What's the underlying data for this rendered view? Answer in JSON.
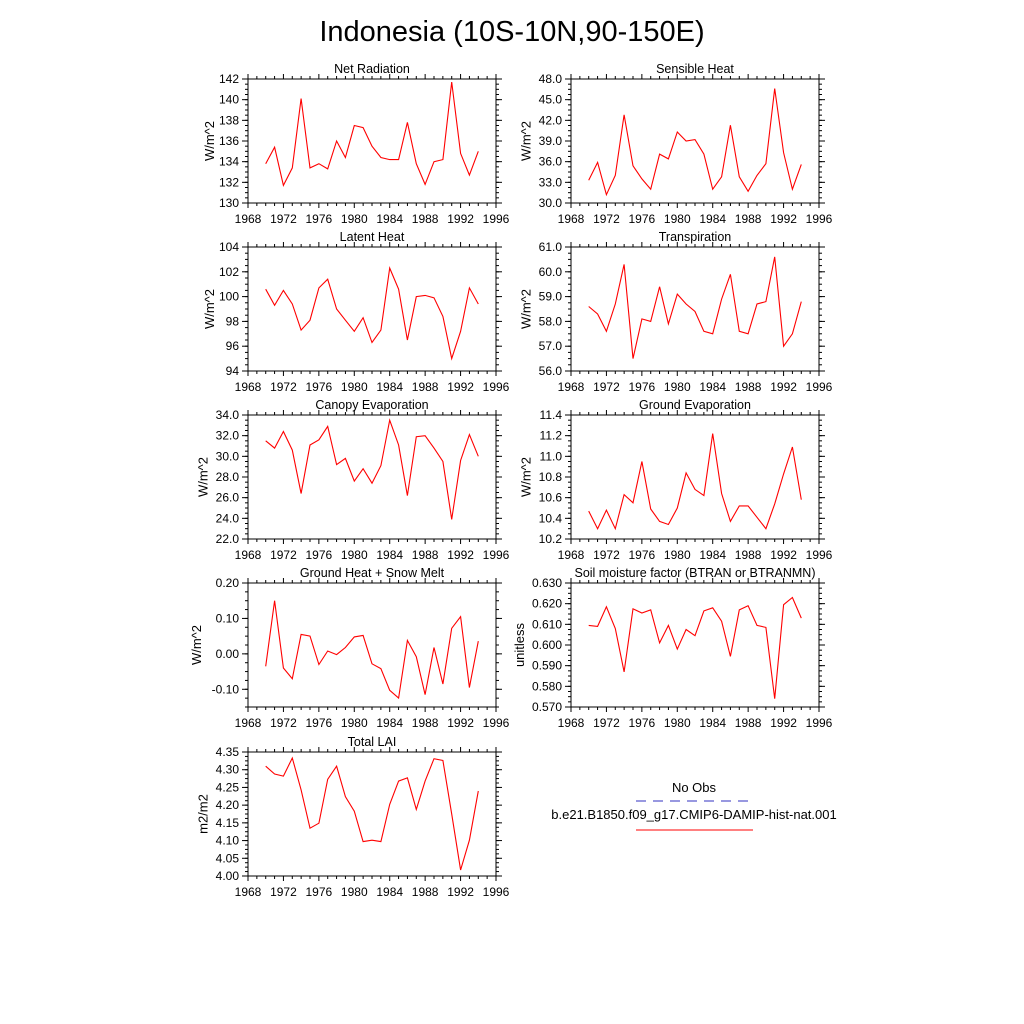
{
  "title": "Indonesia (10S-10N,90-150E)",
  "colors": {
    "model_line": "#ff0000",
    "obs_line": "#3030c0",
    "frame": "#000000",
    "background": "#ffffff"
  },
  "legend": {
    "obs_label": "No Obs",
    "obs_line_style": "dashed",
    "model_label": "b.e21.B1850.f09_g17.CMIP6-DAMIP-hist-nat.001",
    "model_line_style": "solid"
  },
  "chart_data": [
    {
      "type": "line",
      "title": "Net Radiation",
      "ylabel": "W/m^2",
      "xlim": [
        1968,
        1996
      ],
      "ylim": [
        130,
        142
      ],
      "xticks": [
        "1968",
        "1972",
        "1976",
        "1980",
        "1984",
        "1988",
        "1992",
        "1996"
      ],
      "yticks": [
        "130",
        "132",
        "134",
        "136",
        "138",
        "140",
        "142"
      ],
      "series": [
        {
          "x": [
            1970,
            1971,
            1972,
            1973,
            1974,
            1975,
            1976,
            1977,
            1978,
            1979,
            1980,
            1981,
            1982,
            1983,
            1984,
            1985,
            1986,
            1987,
            1988,
            1989,
            1990,
            1991,
            1992,
            1993,
            1994
          ],
          "y": [
            133.8,
            135.4,
            131.7,
            133.4,
            140.1,
            133.4,
            133.8,
            133.3,
            136.0,
            134.4,
            137.5,
            137.3,
            135.5,
            134.4,
            134.2,
            134.2,
            137.8,
            133.8,
            131.8,
            134.0,
            134.2,
            141.7,
            134.8,
            132.7,
            135.0
          ]
        }
      ]
    },
    {
      "type": "line",
      "title": "Sensible Heat",
      "ylabel": "W/m^2",
      "xlim": [
        1968,
        1996
      ],
      "ylim": [
        30,
        48
      ],
      "xticks": [
        "1968",
        "1972",
        "1976",
        "1980",
        "1984",
        "1988",
        "1992",
        "1996"
      ],
      "yticks": [
        "30.0",
        "33.0",
        "36.0",
        "39.0",
        "42.0",
        "45.0",
        "48.0"
      ],
      "series": [
        {
          "x": [
            1970,
            1971,
            1972,
            1973,
            1974,
            1975,
            1976,
            1977,
            1978,
            1979,
            1980,
            1981,
            1982,
            1983,
            1984,
            1985,
            1986,
            1987,
            1988,
            1989,
            1990,
            1991,
            1992,
            1993,
            1994
          ],
          "y": [
            33.3,
            35.9,
            31.2,
            34.0,
            42.8,
            35.4,
            33.5,
            32.0,
            37.1,
            36.4,
            40.3,
            39.0,
            39.2,
            37.1,
            32.0,
            33.8,
            41.3,
            33.8,
            31.7,
            34.0,
            35.7,
            46.6,
            37.3,
            32.0,
            35.6
          ]
        }
      ]
    },
    {
      "type": "line",
      "title": "Latent Heat",
      "ylabel": "W/m^2",
      "xlim": [
        1968,
        1996
      ],
      "ylim": [
        94,
        104
      ],
      "xticks": [
        "1968",
        "1972",
        "1976",
        "1980",
        "1984",
        "1988",
        "1992",
        "1996"
      ],
      "yticks": [
        "94",
        "96",
        "98",
        "100",
        "102",
        "104"
      ],
      "series": [
        {
          "x": [
            1970,
            1971,
            1972,
            1973,
            1974,
            1975,
            1976,
            1977,
            1978,
            1979,
            1980,
            1981,
            1982,
            1983,
            1984,
            1985,
            1986,
            1987,
            1988,
            1989,
            1990,
            1991,
            1992,
            1993,
            1994
          ],
          "y": [
            100.6,
            99.3,
            100.5,
            99.4,
            97.3,
            98.1,
            100.7,
            101.4,
            99.0,
            98.1,
            97.2,
            98.3,
            96.3,
            97.3,
            102.3,
            100.6,
            96.5,
            100.0,
            100.1,
            99.9,
            98.4,
            95.0,
            97.2,
            100.7,
            99.4
          ]
        }
      ]
    },
    {
      "type": "line",
      "title": "Transpiration",
      "ylabel": "W/m^2",
      "xlim": [
        1968,
        1996
      ],
      "ylim": [
        56,
        61
      ],
      "xticks": [
        "1968",
        "1972",
        "1976",
        "1980",
        "1984",
        "1988",
        "1992",
        "1996"
      ],
      "yticks": [
        "56.0",
        "57.0",
        "58.0",
        "59.0",
        "60.0",
        "61.0"
      ],
      "series": [
        {
          "x": [
            1970,
            1971,
            1972,
            1973,
            1974,
            1975,
            1976,
            1977,
            1978,
            1979,
            1980,
            1981,
            1982,
            1983,
            1984,
            1985,
            1986,
            1987,
            1988,
            1989,
            1990,
            1991,
            1992,
            1993,
            1994
          ],
          "y": [
            58.6,
            58.3,
            57.6,
            58.7,
            60.3,
            56.5,
            58.1,
            58.0,
            59.4,
            57.9,
            59.1,
            58.7,
            58.4,
            57.6,
            57.5,
            58.9,
            59.9,
            57.6,
            57.5,
            58.7,
            58.8,
            60.6,
            57.0,
            57.5,
            58.8
          ]
        }
      ]
    },
    {
      "type": "line",
      "title": "Canopy Evaporation",
      "ylabel": "W/m^2",
      "xlim": [
        1968,
        1996
      ],
      "ylim": [
        22,
        34
      ],
      "xticks": [
        "1968",
        "1972",
        "1976",
        "1980",
        "1984",
        "1988",
        "1992",
        "1996"
      ],
      "yticks": [
        "22.0",
        "24.0",
        "26.0",
        "28.0",
        "30.0",
        "32.0",
        "34.0"
      ],
      "series": [
        {
          "x": [
            1970,
            1971,
            1972,
            1973,
            1974,
            1975,
            1976,
            1977,
            1978,
            1979,
            1980,
            1981,
            1982,
            1983,
            1984,
            1985,
            1986,
            1987,
            1988,
            1989,
            1990,
            1991,
            1992,
            1993,
            1994
          ],
          "y": [
            31.5,
            30.8,
            32.4,
            30.6,
            26.4,
            31.1,
            31.6,
            32.9,
            29.2,
            29.8,
            27.6,
            28.8,
            27.4,
            29.1,
            33.5,
            31.1,
            26.2,
            31.9,
            32.0,
            30.8,
            29.5,
            23.9,
            29.6,
            32.1,
            30.0
          ]
        }
      ]
    },
    {
      "type": "line",
      "title": "Ground Evaporation",
      "ylabel": "W/m^2",
      "xlim": [
        1968,
        1996
      ],
      "ylim": [
        10.2,
        11.4
      ],
      "xticks": [
        "1968",
        "1972",
        "1976",
        "1980",
        "1984",
        "1988",
        "1992",
        "1996"
      ],
      "yticks": [
        "10.2",
        "10.4",
        "10.6",
        "10.8",
        "11.0",
        "11.2",
        "11.4"
      ],
      "series": [
        {
          "x": [
            1970,
            1971,
            1972,
            1973,
            1974,
            1975,
            1976,
            1977,
            1978,
            1979,
            1980,
            1981,
            1982,
            1983,
            1984,
            1985,
            1986,
            1987,
            1988,
            1989,
            1990,
            1991,
            1992,
            1993,
            1994
          ],
          "y": [
            10.47,
            10.3,
            10.48,
            10.3,
            10.63,
            10.55,
            10.95,
            10.49,
            10.37,
            10.34,
            10.5,
            10.84,
            10.68,
            10.62,
            11.22,
            10.64,
            10.37,
            10.52,
            10.52,
            10.41,
            10.3,
            10.54,
            10.83,
            11.09,
            10.58
          ]
        }
      ]
    },
    {
      "type": "line",
      "title": "Ground Heat + Snow Melt",
      "ylabel": "W/m^2",
      "xlim": [
        1968,
        1996
      ],
      "ylim": [
        -0.15,
        0.2
      ],
      "xticks": [
        "1968",
        "1972",
        "1976",
        "1980",
        "1984",
        "1988",
        "1992",
        "1996"
      ],
      "yticks": [
        "-0.10",
        "0.00",
        "0.10",
        "0.20"
      ],
      "ytick_values": [
        -0.1,
        0.0,
        0.1,
        0.2
      ],
      "series": [
        {
          "x": [
            1970,
            1971,
            1972,
            1973,
            1974,
            1975,
            1976,
            1977,
            1978,
            1979,
            1980,
            1981,
            1982,
            1983,
            1984,
            1985,
            1986,
            1987,
            1988,
            1989,
            1990,
            1991,
            1992,
            1993,
            1994
          ],
          "y": [
            -0.035,
            0.15,
            -0.04,
            -0.07,
            0.055,
            0.05,
            -0.03,
            0.008,
            -0.002,
            0.018,
            0.048,
            0.052,
            -0.028,
            -0.042,
            -0.103,
            -0.125,
            0.038,
            -0.008,
            -0.115,
            0.018,
            -0.085,
            0.072,
            0.105,
            -0.095,
            0.036
          ]
        }
      ]
    },
    {
      "type": "line",
      "title": "Soil moisture factor (BTRAN or BTRANMN)",
      "ylabel": "unitless",
      "xlim": [
        1968,
        1996
      ],
      "ylim": [
        0.57,
        0.63
      ],
      "xticks": [
        "1968",
        "1972",
        "1976",
        "1980",
        "1984",
        "1988",
        "1992",
        "1996"
      ],
      "yticks": [
        "0.570",
        "0.580",
        "0.590",
        "0.600",
        "0.610",
        "0.620",
        "0.630"
      ],
      "series": [
        {
          "x": [
            1970,
            1971,
            1972,
            1973,
            1974,
            1975,
            1976,
            1977,
            1978,
            1979,
            1980,
            1981,
            1982,
            1983,
            1984,
            1985,
            1986,
            1987,
            1988,
            1989,
            1990,
            1991,
            1992,
            1993,
            1994
          ],
          "y": [
            0.6095,
            0.609,
            0.6185,
            0.608,
            0.587,
            0.6175,
            0.6155,
            0.617,
            0.601,
            0.6095,
            0.598,
            0.6075,
            0.6045,
            0.6165,
            0.618,
            0.6115,
            0.5945,
            0.617,
            0.619,
            0.6095,
            0.6085,
            0.574,
            0.6195,
            0.623,
            0.613
          ]
        }
      ]
    },
    {
      "type": "line",
      "title": "Total LAI",
      "ylabel": "m2/m2",
      "xlim": [
        1968,
        1996
      ],
      "ylim": [
        4.0,
        4.35
      ],
      "xticks": [
        "1968",
        "1972",
        "1976",
        "1980",
        "1984",
        "1988",
        "1992",
        "1996"
      ],
      "yticks": [
        "4.00",
        "4.05",
        "4.10",
        "4.15",
        "4.20",
        "4.25",
        "4.30",
        "4.35"
      ],
      "series": [
        {
          "x": [
            1970,
            1971,
            1972,
            1973,
            1974,
            1975,
            1976,
            1977,
            1978,
            1979,
            1980,
            1981,
            1982,
            1983,
            1984,
            1985,
            1986,
            1987,
            1988,
            1989,
            1990,
            1991,
            1992,
            1993,
            1994
          ],
          "y": [
            4.31,
            4.288,
            4.282,
            4.333,
            4.243,
            4.135,
            4.149,
            4.273,
            4.31,
            4.224,
            4.183,
            4.097,
            4.101,
            4.097,
            4.202,
            4.268,
            4.277,
            4.188,
            4.268,
            4.331,
            4.326,
            4.175,
            4.017,
            4.101,
            4.24
          ]
        }
      ]
    }
  ]
}
